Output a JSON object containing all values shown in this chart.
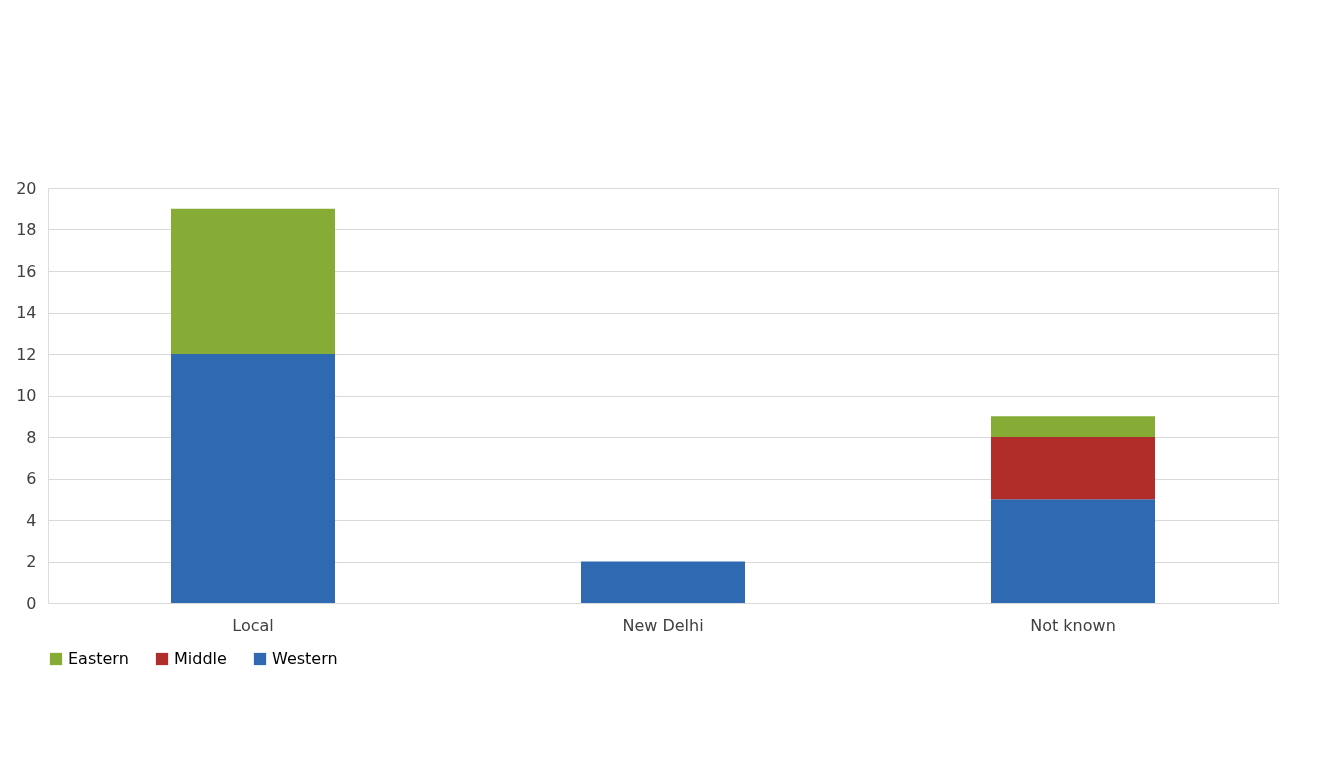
{
  "chart_data": {
    "type": "bar",
    "stacked": true,
    "categories": [
      "Local",
      "New Delhi",
      "Not known"
    ],
    "series": [
      {
        "name": "Western",
        "color": "#2e69b1",
        "values": [
          12,
          2,
          5
        ]
      },
      {
        "name": "Middle",
        "color": "#b02d2a",
        "values": [
          null,
          null,
          3
        ]
      },
      {
        "name": "Eastern",
        "color": "#86ac35",
        "values": [
          7,
          null,
          1
        ]
      }
    ],
    "ylim": [
      0,
      20
    ],
    "yticks": [
      0,
      2,
      4,
      6,
      8,
      10,
      12,
      14,
      16,
      18,
      20
    ],
    "grid": "y",
    "legend": "bottom"
  }
}
